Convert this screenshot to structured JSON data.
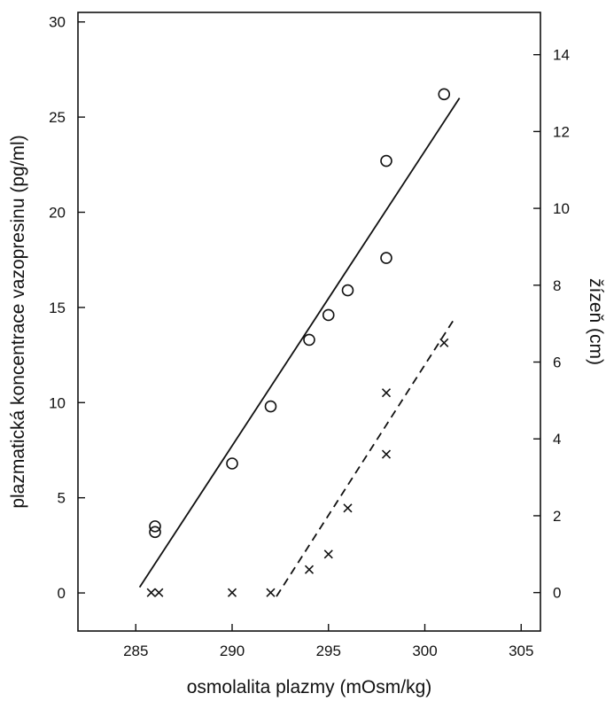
{
  "chart_data": {
    "type": "scatter",
    "xlabel": "osmolalita plazmy (mOsm/kg)",
    "ylabel": "plazmatická koncentrace vazopresinu (pg/ml)",
    "y2label": "žízeň (cm)",
    "xlim": [
      282,
      306
    ],
    "ylim": [
      -2,
      30.5
    ],
    "y2lim": [
      -1,
      15.1
    ],
    "x_ticks": [
      285,
      290,
      295,
      300,
      305
    ],
    "x_tick_labels": [
      "285",
      "290",
      "295",
      "300",
      "305"
    ],
    "y_ticks": [
      0,
      5,
      10,
      15,
      20,
      25,
      30
    ],
    "y_tick_labels": [
      "0",
      "5",
      "10",
      "15",
      "20",
      "25",
      "30"
    ],
    "y2_ticks": [
      0,
      2,
      4,
      6,
      8,
      10,
      12,
      14
    ],
    "y2_tick_labels": [
      "0",
      "2",
      "4",
      "6",
      "8",
      "10",
      "12",
      "14"
    ],
    "grid": false,
    "series": [
      {
        "marker": "circle",
        "axis": "left",
        "points": [
          {
            "x": 286.0,
            "y": 3.5
          },
          {
            "x": 286.0,
            "y": 3.2
          },
          {
            "x": 290.0,
            "y": 6.8
          },
          {
            "x": 292.0,
            "y": 9.8
          },
          {
            "x": 294.0,
            "y": 13.3
          },
          {
            "x": 295.0,
            "y": 14.6
          },
          {
            "x": 296.0,
            "y": 15.9
          },
          {
            "x": 298.0,
            "y": 17.6
          },
          {
            "x": 298.0,
            "y": 22.7
          },
          {
            "x": 301.0,
            "y": 26.2
          }
        ],
        "fit": {
          "style": "solid",
          "x": [
            285.2,
            301.8
          ],
          "y": [
            0.3,
            26.0
          ]
        }
      },
      {
        "marker": "x",
        "axis": "right",
        "points": [
          {
            "x": 285.8,
            "y": 0.0
          },
          {
            "x": 286.2,
            "y": 0.0
          },
          {
            "x": 290.0,
            "y": 0.0
          },
          {
            "x": 292.0,
            "y": 0.0
          },
          {
            "x": 294.0,
            "y": 0.6
          },
          {
            "x": 295.0,
            "y": 1.0
          },
          {
            "x": 296.0,
            "y": 2.2
          },
          {
            "x": 298.0,
            "y": 3.6
          },
          {
            "x": 298.0,
            "y": 5.2
          },
          {
            "x": 301.0,
            "y": 6.5
          }
        ],
        "fit": {
          "style": "dashed",
          "x": [
            292.3,
            301.5
          ],
          "y": [
            -0.1,
            7.1
          ]
        }
      }
    ]
  }
}
